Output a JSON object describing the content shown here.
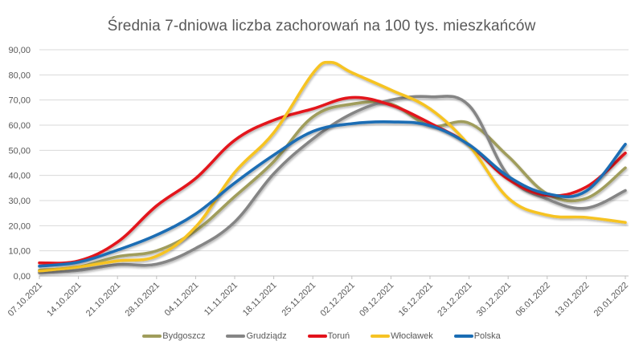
{
  "chart_data": {
    "type": "line",
    "title": "Średnia 7-dniowa liczba zachorowań na 100 tys. mieszkańców",
    "xlabel": "",
    "ylabel": "",
    "ylim": [
      0,
      90
    ],
    "yticks": [
      "0,00",
      "10,00",
      "20,00",
      "30,00",
      "40,00",
      "50,00",
      "60,00",
      "70,00",
      "80,00",
      "90,00"
    ],
    "grid": true,
    "legend_position": "bottom",
    "categories": [
      "07.10.2021",
      "14.10.2021",
      "21.10.2021",
      "28.10.2021",
      "04.11.2021",
      "11.11.2021",
      "18.11.2021",
      "25.11.2021",
      "02.12.2021",
      "09.12.2021",
      "16.12.2021",
      "23.12.2021",
      "30.12.2021",
      "06.01.2022",
      "13.01.2022",
      "20.01.2022"
    ],
    "series": [
      {
        "name": "Bydgoszcz",
        "color": "#A09D5C",
        "values": [
          2.3,
          3.6,
          7.7,
          10.0,
          18.0,
          31.6,
          45.5,
          63.3,
          68.4,
          68.4,
          59.8,
          60.8,
          47.6,
          32.7,
          30.9,
          43.0
        ]
      },
      {
        "name": "Grudziądz",
        "color": "#858585",
        "values": [
          1.3,
          2.2,
          4.5,
          4.7,
          11.0,
          21.5,
          40.7,
          54.5,
          64.6,
          70.0,
          71.3,
          67.8,
          40.0,
          30.6,
          27.0,
          34.0
        ]
      },
      {
        "name": "Toruń",
        "color": "#E3121B",
        "values": [
          5.2,
          6.0,
          13.5,
          27.9,
          38.8,
          54.0,
          62.0,
          66.5,
          71.0,
          68.0,
          60.8,
          52.2,
          38.5,
          32.1,
          35.4,
          48.9
        ]
      },
      {
        "name": "Włocławek",
        "color": "#F6C324",
        "values": [
          2.0,
          3.6,
          6.0,
          7.9,
          19.5,
          41.2,
          57.0,
          80.6,
          80.9,
          74.0,
          66.5,
          52.0,
          31.0,
          24.2,
          23.3,
          21.3
        ],
        "extra_points": [
          [
            7.45,
            85.0
          ]
        ]
      },
      {
        "name": "Polska",
        "color": "#1A6DB4",
        "values": [
          3.9,
          5.5,
          10.3,
          16.3,
          24.7,
          37.0,
          48.1,
          57.5,
          60.6,
          61.3,
          59.8,
          52.2,
          39.6,
          32.7,
          33.8,
          52.4
        ]
      }
    ]
  }
}
